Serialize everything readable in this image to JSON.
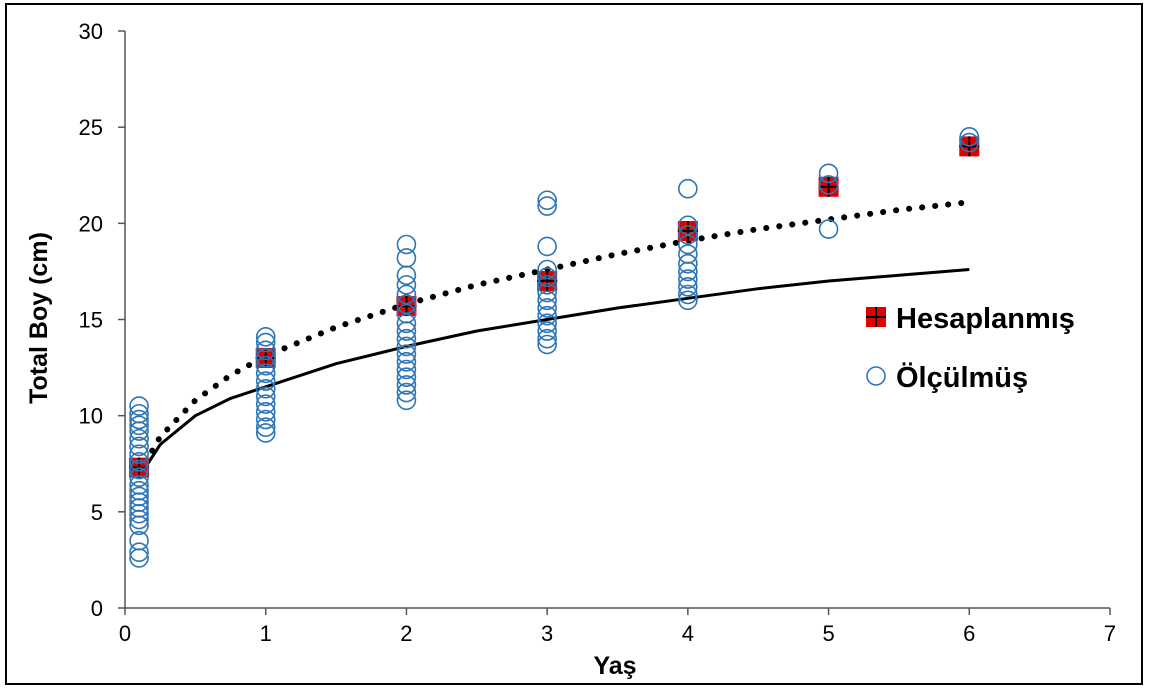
{
  "chart_data": {
    "type": "scatter",
    "xlabel": "Yaş",
    "ylabel": "Total Boy (cm)",
    "xlim": [
      0,
      7
    ],
    "ylim": [
      0,
      30
    ],
    "xticks": [
      0,
      1,
      2,
      3,
      4,
      5,
      6,
      7
    ],
    "yticks": [
      0,
      5,
      10,
      15,
      20,
      25,
      30
    ],
    "grid": false,
    "legend_position": "right",
    "colors": {
      "olcum": "#2e75b6",
      "hesap_fill": "#e00000",
      "hesap_cross": "#000000",
      "curve": "#000000"
    },
    "series": [
      {
        "name": "Hesaplanmış",
        "marker": "red-square-with-cross",
        "x": [
          0.1,
          1,
          2,
          3,
          4,
          5,
          6
        ],
        "y": [
          7.3,
          13.0,
          15.7,
          17.0,
          19.6,
          21.9,
          24.0
        ]
      },
      {
        "name": "Ölçülmüş",
        "marker": "open-circle",
        "points": [
          [
            0.1,
            2.6
          ],
          [
            0.1,
            2.9
          ],
          [
            0.1,
            3.5
          ],
          [
            0.1,
            4.3
          ],
          [
            0.1,
            4.6
          ],
          [
            0.1,
            4.9
          ],
          [
            0.1,
            5.2
          ],
          [
            0.1,
            5.5
          ],
          [
            0.1,
            5.8
          ],
          [
            0.1,
            6.1
          ],
          [
            0.1,
            6.4
          ],
          [
            0.1,
            6.8
          ],
          [
            0.1,
            7.2
          ],
          [
            0.1,
            7.6
          ],
          [
            0.1,
            8.0
          ],
          [
            0.1,
            8.4
          ],
          [
            0.1,
            8.8
          ],
          [
            0.1,
            9.2
          ],
          [
            0.1,
            9.5
          ],
          [
            0.1,
            9.8
          ],
          [
            0.1,
            10.1
          ],
          [
            0.1,
            10.5
          ],
          [
            1,
            9.1
          ],
          [
            1,
            9.4
          ],
          [
            1,
            9.8
          ],
          [
            1,
            10.2
          ],
          [
            1,
            10.6
          ],
          [
            1,
            11.0
          ],
          [
            1,
            11.4
          ],
          [
            1,
            11.8
          ],
          [
            1,
            12.2
          ],
          [
            1,
            12.6
          ],
          [
            1,
            13.0
          ],
          [
            1,
            13.4
          ],
          [
            1,
            13.8
          ],
          [
            1,
            14.1
          ],
          [
            2,
            10.8
          ],
          [
            2,
            11.2
          ],
          [
            2,
            11.6
          ],
          [
            2,
            12.0
          ],
          [
            2,
            12.4
          ],
          [
            2,
            12.8
          ],
          [
            2,
            13.2
          ],
          [
            2,
            13.6
          ],
          [
            2,
            14.0
          ],
          [
            2,
            14.4
          ],
          [
            2,
            14.8
          ],
          [
            2,
            15.3
          ],
          [
            2,
            15.8
          ],
          [
            2,
            16.3
          ],
          [
            2,
            16.8
          ],
          [
            2,
            17.3
          ],
          [
            2,
            18.2
          ],
          [
            2,
            18.9
          ],
          [
            3,
            13.7
          ],
          [
            3,
            14.0
          ],
          [
            3,
            14.4
          ],
          [
            3,
            14.8
          ],
          [
            3,
            15.2
          ],
          [
            3,
            15.6
          ],
          [
            3,
            16.0
          ],
          [
            3,
            16.4
          ],
          [
            3,
            16.8
          ],
          [
            3,
            17.2
          ],
          [
            3,
            17.6
          ],
          [
            3,
            18.8
          ],
          [
            3,
            20.9
          ],
          [
            3,
            21.2
          ],
          [
            4,
            16.0
          ],
          [
            4,
            16.3
          ],
          [
            4,
            16.7
          ],
          [
            4,
            17.1
          ],
          [
            4,
            17.5
          ],
          [
            4,
            17.9
          ],
          [
            4,
            18.4
          ],
          [
            4,
            18.9
          ],
          [
            4,
            19.4
          ],
          [
            4,
            19.9
          ],
          [
            4,
            21.8
          ],
          [
            5,
            19.7
          ],
          [
            5,
            22.0
          ],
          [
            5,
            22.6
          ],
          [
            6,
            24.2
          ],
          [
            6,
            24.5
          ]
        ]
      }
    ],
    "curves": [
      {
        "style": "dotted",
        "x": [
          0.1,
          0.25,
          0.5,
          0.75,
          1,
          1.5,
          2,
          2.5,
          3,
          3.5,
          4,
          4.5,
          5,
          5.5,
          6
        ],
        "y": [
          7.0,
          8.9,
          10.8,
          12.1,
          13.1,
          14.6,
          15.8,
          16.8,
          17.6,
          18.4,
          19.1,
          19.7,
          20.2,
          20.7,
          21.1
        ]
      },
      {
        "style": "solid",
        "x": [
          0.1,
          0.25,
          0.5,
          0.75,
          1,
          1.5,
          2,
          2.5,
          3,
          3.5,
          4,
          4.5,
          5,
          5.5,
          6
        ],
        "y": [
          6.8,
          8.5,
          10.0,
          10.9,
          11.5,
          12.7,
          13.6,
          14.4,
          15.0,
          15.6,
          16.1,
          16.6,
          17.0,
          17.3,
          17.6
        ]
      }
    ]
  }
}
